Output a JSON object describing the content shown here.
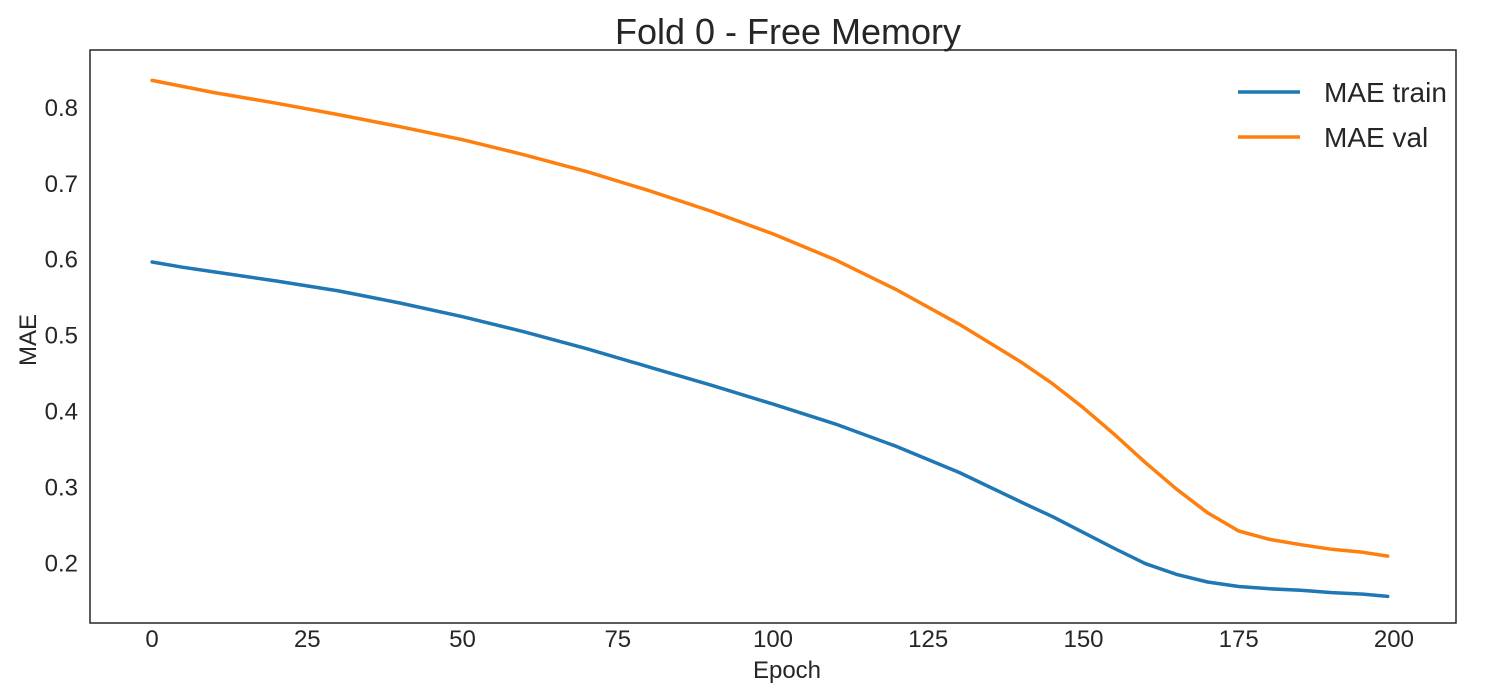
{
  "chart_data": {
    "type": "line",
    "title": "Fold 0 - Free Memory",
    "xlabel": "Epoch",
    "ylabel": "MAE",
    "xlim": [
      -10,
      210
    ],
    "ylim": [
      0.122,
      0.876
    ],
    "xticks": [
      0,
      25,
      50,
      75,
      100,
      125,
      150,
      175,
      200
    ],
    "yticks": [
      0.2,
      0.3,
      0.4,
      0.5,
      0.6,
      0.7,
      0.8
    ],
    "grid": false,
    "legend_position": "top-right",
    "series": [
      {
        "name": "MAE train",
        "color": "#1f77b4",
        "x": [
          0,
          5,
          10,
          20,
          30,
          40,
          50,
          60,
          70,
          80,
          90,
          100,
          110,
          120,
          130,
          140,
          145,
          150,
          155,
          160,
          165,
          170,
          175,
          180,
          185,
          190,
          195,
          199
        ],
        "y": [
          0.597,
          0.59,
          0.584,
          0.572,
          0.559,
          0.543,
          0.525,
          0.505,
          0.483,
          0.459,
          0.435,
          0.41,
          0.384,
          0.354,
          0.32,
          0.281,
          0.262,
          0.241,
          0.22,
          0.2,
          0.186,
          0.176,
          0.17,
          0.167,
          0.165,
          0.162,
          0.16,
          0.157
        ]
      },
      {
        "name": "MAE val",
        "color": "#ff7f0e",
        "x": [
          0,
          5,
          10,
          20,
          30,
          40,
          50,
          60,
          70,
          80,
          90,
          100,
          110,
          120,
          130,
          140,
          145,
          150,
          155,
          160,
          165,
          170,
          175,
          180,
          185,
          190,
          195,
          199
        ],
        "y": [
          0.836,
          0.828,
          0.82,
          0.806,
          0.791,
          0.775,
          0.758,
          0.738,
          0.716,
          0.691,
          0.664,
          0.634,
          0.6,
          0.56,
          0.515,
          0.465,
          0.437,
          0.405,
          0.37,
          0.333,
          0.298,
          0.267,
          0.243,
          0.232,
          0.225,
          0.219,
          0.215,
          0.21
        ]
      }
    ]
  }
}
